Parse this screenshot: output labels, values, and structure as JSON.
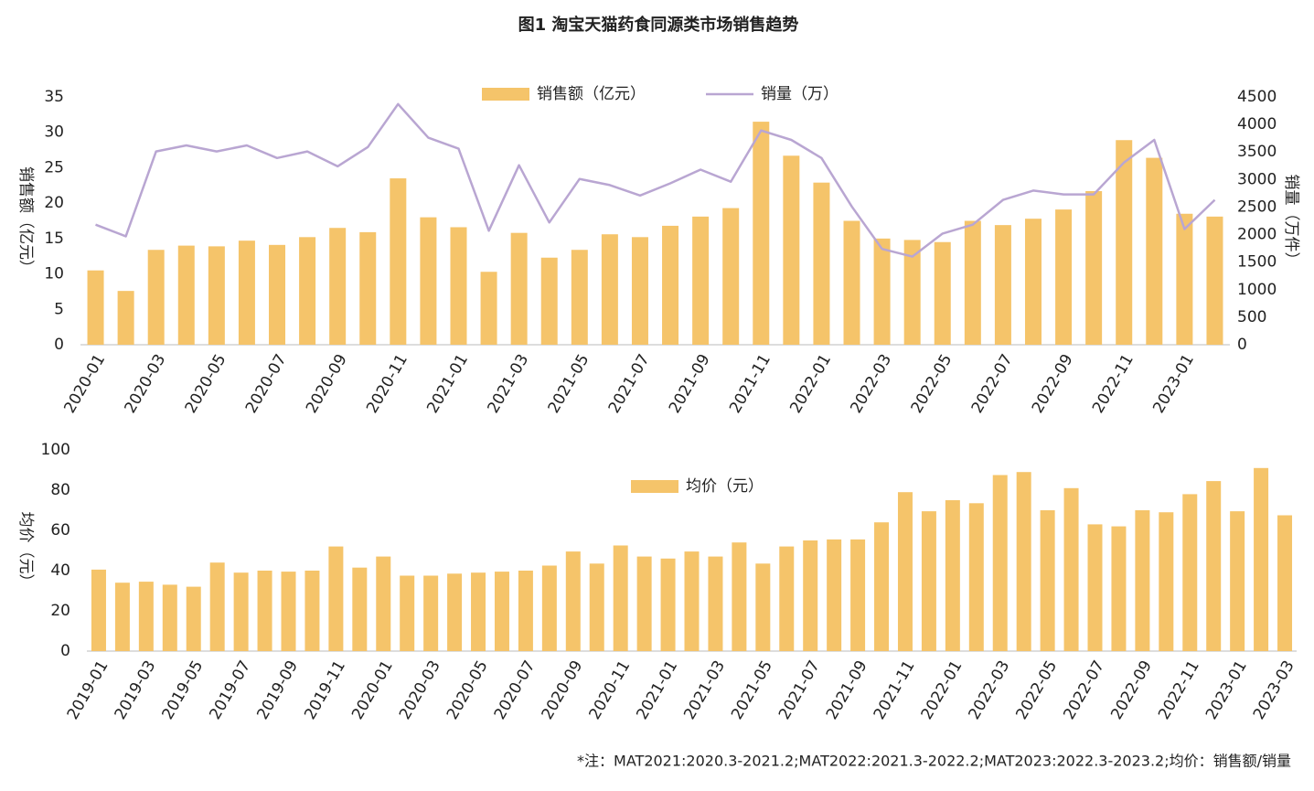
{
  "title": "图1 淘宝天猫药食同源类市场销售趋势",
  "note": "*注：MAT2021:2020.3-2021.2;MAT2022:2021.3-2022.2;MAT2023:2022.3-2023.2;均价：销售额/销量",
  "chart_data": [
    {
      "type": "combo",
      "y_label": "销售额（亿元）",
      "y2_label": "销量（万件）",
      "categories": [
        "2020-01",
        null,
        "2020-03",
        null,
        "2020-05",
        null,
        "2020-07",
        null,
        "2020-09",
        null,
        "2020-11",
        null,
        "2021-01",
        null,
        "2021-03",
        null,
        "2021-05",
        null,
        "2021-07",
        null,
        "2021-09",
        null,
        "2021-11",
        null,
        "2022-01",
        null,
        "2022-03",
        null,
        "2022-05",
        null,
        "2022-07",
        null,
        "2022-09",
        null,
        "2022-11",
        null,
        "2023-01",
        null
      ],
      "series": [
        {
          "name": "销售额（亿元）",
          "kind": "bar",
          "color": "#f5c46a",
          "axis": "y",
          "values": [
            10.5,
            7.6,
            13.4,
            14.0,
            13.9,
            14.7,
            14.1,
            15.2,
            16.5,
            15.9,
            23.5,
            18.0,
            16.6,
            10.3,
            15.8,
            12.3,
            13.4,
            15.6,
            15.2,
            16.8,
            18.1,
            19.3,
            31.5,
            26.7,
            22.9,
            17.5,
            15.0,
            14.8,
            14.5,
            17.5,
            16.9,
            17.8,
            19.1,
            21.7,
            28.9,
            26.4,
            18.5,
            18.1
          ]
        },
        {
          "name": "销量（万）",
          "kind": "line",
          "color": "#b9a6d2",
          "axis": "y2",
          "values": [
            2180,
            1970,
            3510,
            3620,
            3510,
            3620,
            3390,
            3510,
            3240,
            3590,
            4370,
            3760,
            3560,
            2070,
            3260,
            2220,
            3010,
            2900,
            2710,
            2930,
            3180,
            2960,
            3890,
            3720,
            3390,
            2510,
            1740,
            1600,
            2020,
            2180,
            2630,
            2800,
            2730,
            2730,
            3310,
            3720,
            2100,
            2630
          ]
        }
      ],
      "ylim": [
        0,
        35
      ],
      "yticks": [
        0,
        5,
        10,
        15,
        20,
        25,
        30,
        35
      ],
      "y2lim": [
        0,
        4500
      ],
      "y2ticks": [
        0,
        500,
        1000,
        1500,
        2000,
        2500,
        3000,
        3500,
        4000,
        4500
      ]
    },
    {
      "type": "bar",
      "y_label": "均价（元）",
      "categories": [
        "2019-01",
        null,
        "2019-03",
        null,
        "2019-05",
        null,
        "2019-07",
        null,
        "2019-09",
        null,
        "2019-11",
        null,
        "2020-01",
        null,
        "2020-03",
        null,
        "2020-05",
        null,
        "2020-07",
        null,
        "2020-09",
        null,
        "2020-11",
        null,
        "2021-01",
        null,
        "2021-03",
        null,
        "2021-05",
        null,
        "2021-07",
        null,
        "2021-09",
        null,
        "2021-11",
        null,
        "2022-01",
        null,
        "2022-03",
        null,
        "2022-05",
        null,
        "2022-07",
        null,
        "2022-09",
        null,
        "2022-11",
        null,
        "2023-01",
        null,
        "2023-03"
      ],
      "series": [
        {
          "name": "均价（元）",
          "kind": "bar",
          "color": "#f5c46a",
          "axis": "y",
          "values": [
            40.5,
            34,
            34.5,
            33,
            32,
            44,
            39,
            40,
            39.5,
            40,
            52,
            41.5,
            47,
            37.5,
            37.5,
            38.5,
            39,
            39.5,
            40,
            42.5,
            49.5,
            43.5,
            52.5,
            47,
            46,
            49.5,
            47,
            54,
            43.5,
            52,
            55,
            55.5,
            55.5,
            64,
            79,
            69.5,
            75,
            73.5,
            87.5,
            89,
            70,
            81,
            63,
            62,
            70,
            69,
            78,
            84.5,
            69.5,
            91,
            67.5
          ]
        }
      ],
      "ylim": [
        0,
        100
      ],
      "yticks": [
        0,
        20,
        40,
        60,
        80,
        100
      ]
    }
  ]
}
